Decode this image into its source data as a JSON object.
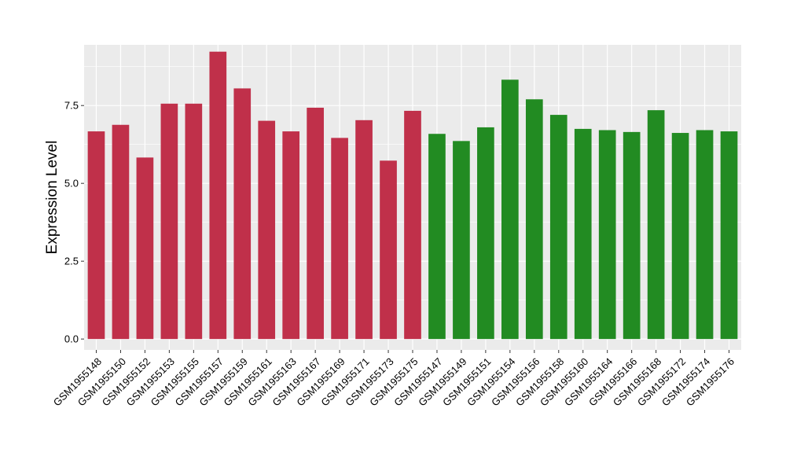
{
  "chart_data": {
    "type": "bar",
    "title": "",
    "xlabel": "",
    "ylabel": "Expression Level",
    "ylim": [
      -0.35,
      9.45
    ],
    "yticks": [
      0.0,
      2.5,
      5.0,
      7.5
    ],
    "ytick_labels": [
      "0.0",
      "2.5",
      "5.0",
      "7.5"
    ],
    "grid": true,
    "legend": "none",
    "colors": {
      "panel_bg": "#EBEBEB",
      "grid": "#FFFFFF",
      "group_a": "#C0304A",
      "group_b": "#228B22"
    },
    "categories": [
      "GSM1955148",
      "GSM1955150",
      "GSM1955152",
      "GSM1955153",
      "GSM1955155",
      "GSM1955157",
      "GSM1955159",
      "GSM1955161",
      "GSM1955163",
      "GSM1955167",
      "GSM1955169",
      "GSM1955171",
      "GSM1955173",
      "GSM1955175",
      "GSM1955147",
      "GSM1955149",
      "GSM1955151",
      "GSM1955154",
      "GSM1955156",
      "GSM1955158",
      "GSM1955160",
      "GSM1955164",
      "GSM1955166",
      "GSM1955168",
      "GSM1955172",
      "GSM1955174",
      "GSM1955176"
    ],
    "values": [
      6.67,
      6.88,
      5.83,
      7.56,
      7.56,
      9.23,
      8.05,
      7.01,
      6.67,
      7.43,
      6.46,
      7.03,
      5.73,
      7.33,
      6.59,
      6.36,
      6.8,
      8.33,
      7.7,
      7.2,
      6.75,
      6.71,
      6.65,
      7.35,
      6.62,
      6.71,
      6.67
    ],
    "groups": [
      "a",
      "a",
      "a",
      "a",
      "a",
      "a",
      "a",
      "a",
      "a",
      "a",
      "a",
      "a",
      "a",
      "a",
      "b",
      "b",
      "b",
      "b",
      "b",
      "b",
      "b",
      "b",
      "b",
      "b",
      "b",
      "b",
      "b"
    ]
  }
}
